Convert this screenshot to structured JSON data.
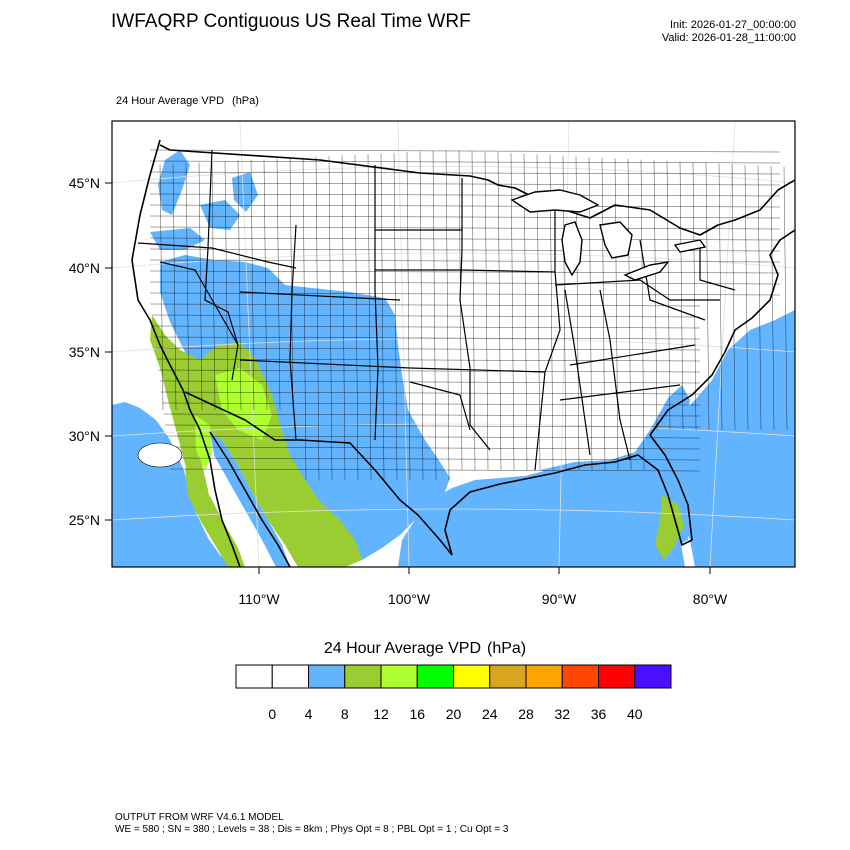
{
  "header": {
    "title": "IWFAQRP Contiguous US Real Time WRF",
    "init": "Init: 2026-01-27_00:00:00",
    "valid": "Valid: 2026-01-28_11:00:00"
  },
  "field": {
    "name": "24 Hour Average VPD",
    "units": "(hPa)"
  },
  "map": {
    "lat_labels": [
      "45°N",
      "40°N",
      "35°N",
      "30°N",
      "25°N"
    ],
    "lon_labels": [
      "110°W",
      "100°W",
      "90°W",
      "80°W"
    ],
    "colors": {
      "land_background": "#ffffff",
      "borders": "#000000",
      "blue_region": "#62b4ff",
      "green_region": "#9acd32",
      "light_green_region": "#adff2f"
    }
  },
  "colorbar": {
    "title": "24 Hour Average VPD",
    "units": "(hPa)",
    "colors": [
      "#ffffff",
      "#ffffff",
      "#62b4ff",
      "#9acd32",
      "#adff2f",
      "#00ff00",
      "#ffff00",
      "#daa520",
      "#ffa500",
      "#ff4500",
      "#ff0000",
      "#4b0fff"
    ],
    "labels": [
      "0",
      "4",
      "8",
      "12",
      "16",
      "20",
      "24",
      "28",
      "32",
      "36",
      "40"
    ]
  },
  "footer": {
    "line1": "OUTPUT FROM WRF V4.6.1 MODEL",
    "line2": "WE = 580 ; SN = 380 ; Levels = 38 ; Dis = 8km ; Phys Opt = 8 ; PBL Opt = 1 ; Cu Opt = 3"
  }
}
